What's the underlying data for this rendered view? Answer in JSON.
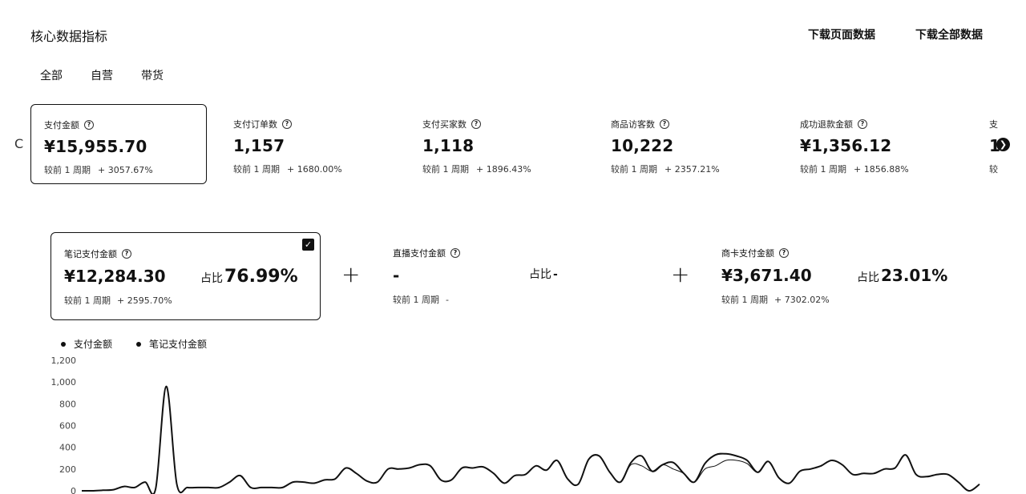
{
  "header": {
    "title": "核心数据指标",
    "download_page": "下载页面数据",
    "download_all": "下载全部数据"
  },
  "tabs": [
    {
      "label": "全部",
      "active": true
    },
    {
      "label": "自营",
      "active": false
    },
    {
      "label": "带货",
      "active": false
    }
  ],
  "metrics": [
    {
      "label": "支付金额",
      "value": "¥15,955.70",
      "compare_label": "较前 1 周期",
      "change": "+ 3057.67%",
      "selected": true
    },
    {
      "label": "支付订单数",
      "value": "1,157",
      "compare_label": "较前 1 周期",
      "change": "+ 1680.00%"
    },
    {
      "label": "支付买家数",
      "value": "1,118",
      "compare_label": "较前 1 周期",
      "change": "+ 1896.43%"
    },
    {
      "label": "商品访客数",
      "value": "10,222",
      "compare_label": "较前 1 周期",
      "change": "+ 2357.21%"
    },
    {
      "label": "成功退款金额",
      "value": "¥1,356.12",
      "compare_label": "较前 1 周期",
      "change": "+ 1856.88%"
    },
    {
      "label": "支",
      "value": "1",
      "compare_label": "较",
      "change": ""
    }
  ],
  "breakdown": [
    {
      "label": "笔记支付金额",
      "value": "¥12,284.30",
      "share_label": "占比",
      "share": "76.99%",
      "compare_label": "较前 1 周期",
      "change": "+ 2595.70%",
      "checked": true
    },
    {
      "label": "直播支付金额",
      "value": "-",
      "share_label": "占比",
      "share": "-",
      "compare_label": "较前 1 周期",
      "change": "-"
    },
    {
      "label": "商卡支付金额",
      "value": "¥3,671.40",
      "share_label": "占比",
      "share": "23.01%",
      "compare_label": "较前 1 周期",
      "change": "+ 7302.02%"
    }
  ],
  "operators": {
    "plus": "+"
  },
  "icons": {
    "help": "question-circle-icon",
    "next": "chevron-right-icon",
    "check": "checkmark-icon",
    "prev": "chevron-left-icon"
  },
  "chart_data": {
    "type": "line",
    "legend": [
      "支付金额",
      "笔记支付金额"
    ],
    "yticks": [
      "0",
      "200",
      "400",
      "600",
      "800",
      "1,000",
      "1,200"
    ],
    "ylim": [
      0,
      1200
    ],
    "grid": false,
    "series": [
      {
        "name": "支付金额",
        "color": "#111111",
        "values": [
          0,
          0,
          5,
          10,
          40,
          30,
          80,
          20,
          960,
          60,
          30,
          30,
          30,
          30,
          80,
          140,
          30,
          30,
          30,
          30,
          80,
          80,
          70,
          100,
          110,
          210,
          160,
          90,
          80,
          200,
          200,
          210,
          240,
          230,
          100,
          100,
          210,
          210,
          220,
          160,
          70,
          140,
          150,
          230,
          190,
          280,
          110,
          60,
          290,
          320,
          170,
          80,
          260,
          320,
          180,
          240,
          260,
          160,
          80,
          250,
          330,
          340,
          320,
          280,
          170,
          270,
          120,
          70,
          180,
          200,
          230,
          280,
          240,
          150,
          160,
          160,
          200,
          210,
          330,
          150,
          130,
          150,
          150,
          80,
          0,
          60
        ]
      },
      {
        "name": "笔记支付金额",
        "color": "#111111",
        "values": [
          0,
          0,
          5,
          10,
          40,
          30,
          80,
          20,
          960,
          60,
          30,
          30,
          30,
          30,
          80,
          140,
          30,
          30,
          30,
          30,
          80,
          80,
          70,
          100,
          110,
          210,
          160,
          90,
          80,
          200,
          200,
          210,
          240,
          230,
          100,
          100,
          210,
          210,
          220,
          160,
          70,
          140,
          150,
          230,
          190,
          280,
          110,
          60,
          290,
          320,
          170,
          80,
          240,
          230,
          180,
          240,
          200,
          160,
          80,
          200,
          230,
          280,
          280,
          250,
          170,
          270,
          120,
          70,
          180,
          200,
          230,
          280,
          240,
          150,
          160,
          160,
          200,
          210,
          330,
          150,
          130,
          150,
          150,
          80,
          0,
          60
        ]
      }
    ]
  }
}
